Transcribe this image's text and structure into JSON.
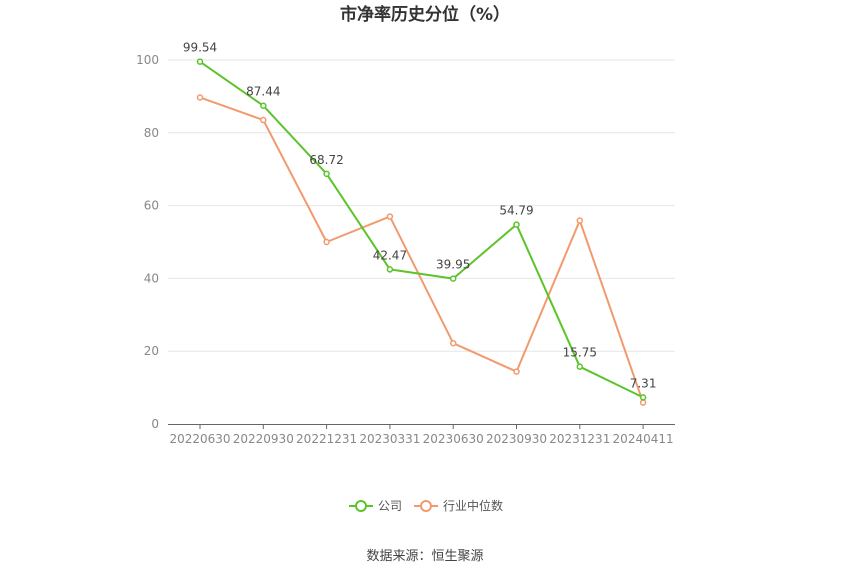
{
  "chart_data": {
    "type": "line",
    "title": "市净率历史分位（%）",
    "categories": [
      "20220630",
      "20220930",
      "20221231",
      "20230331",
      "20230630",
      "20230930",
      "20231231",
      "20240411"
    ],
    "series": [
      {
        "name": "公司",
        "color": "#5cc42b",
        "values": [
          99.54,
          87.44,
          68.72,
          42.47,
          39.95,
          54.79,
          15.75,
          7.31
        ],
        "labels": [
          "99.54",
          "87.44",
          "68.72",
          "42.47",
          "39.95",
          "54.79",
          "15.75",
          "7.31"
        ]
      },
      {
        "name": "行业中位数",
        "color": "#f29a6e",
        "values": [
          89.7,
          83.5,
          50.0,
          57.0,
          22.2,
          14.4,
          55.9,
          5.9
        ]
      }
    ],
    "ylim": [
      0,
      100
    ],
    "yticks": [
      "0",
      "20",
      "40",
      "60",
      "80",
      "100"
    ],
    "grid": true,
    "legend_position": "bottom-center",
    "source": "数据来源：恒生聚源"
  }
}
